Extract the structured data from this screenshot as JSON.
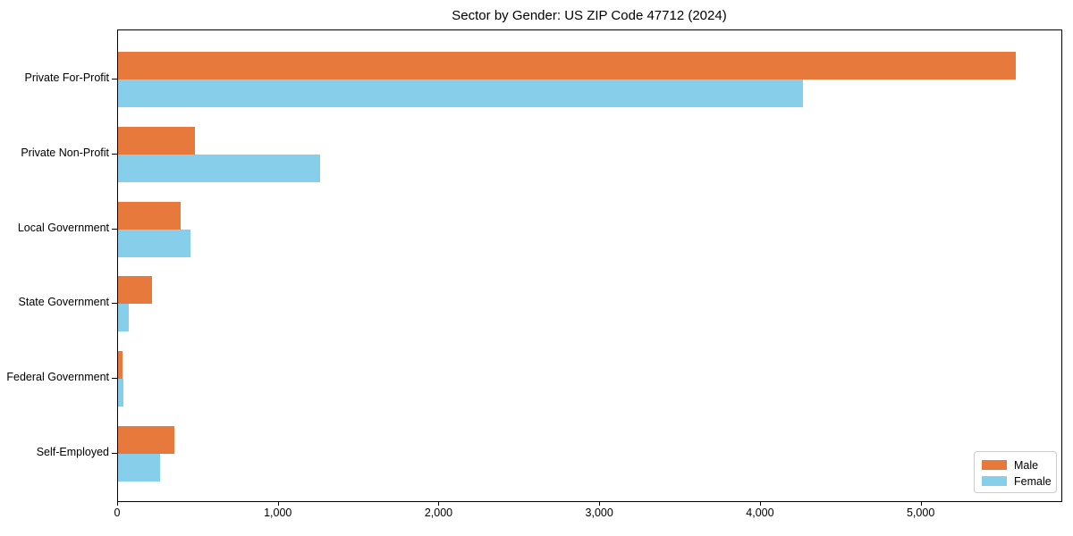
{
  "chart_data": {
    "type": "bar",
    "orientation": "horizontal",
    "title": "Sector by Gender: US ZIP Code 47712 (2024)",
    "categories": [
      "Private For-Profit",
      "Private Non-Profit",
      "Local Government",
      "State Government",
      "Federal Government",
      "Self-Employed"
    ],
    "series": [
      {
        "name": "Male",
        "color": "#E8793C",
        "values": [
          5585,
          480,
          390,
          210,
          30,
          350
        ]
      },
      {
        "name": "Female",
        "color": "#87CEEB",
        "values": [
          4260,
          1260,
          450,
          65,
          35,
          260
        ]
      }
    ],
    "xlim": [
      0,
      5870
    ],
    "xticks": [
      0,
      1000,
      2000,
      3000,
      4000,
      5000
    ],
    "xtick_labels": [
      "0",
      "1,000",
      "2,000",
      "3,000",
      "4,000",
      "5,000"
    ],
    "xlabel": "",
    "ylabel": "",
    "grid": false,
    "legend": {
      "position": "lower right",
      "entries": [
        "Male",
        "Female"
      ]
    }
  }
}
